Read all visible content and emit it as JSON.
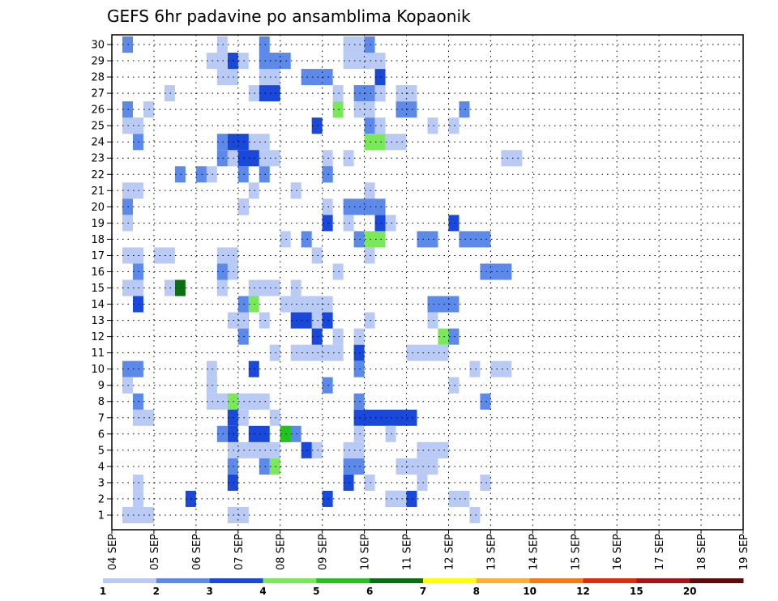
{
  "chart_data": {
    "type": "heatmap",
    "title": "GEFS 6hr padavine po ansamblima Kopaonik",
    "xlabel": "",
    "ylabel": "",
    "x_tick_labels": [
      "04 SEP",
      "05 SEP",
      "06 SEP",
      "07 SEP",
      "08 SEP",
      "09 SEP",
      "10 SEP",
      "11 SEP",
      "12 SEP",
      "13 SEP",
      "14 SEP",
      "15 SEP",
      "16 SEP",
      "17 SEP",
      "18 SEP",
      "19 SEP"
    ],
    "x_range_steps": [
      0,
      60
    ],
    "y_tick_labels": [
      1,
      2,
      3,
      4,
      5,
      6,
      7,
      8,
      9,
      10,
      11,
      12,
      13,
      14,
      15,
      16,
      17,
      18,
      19,
      20,
      21,
      22,
      23,
      24,
      25,
      26,
      27,
      28,
      29,
      30
    ],
    "grid": true,
    "colorbar": {
      "labels": [
        "1",
        "2",
        "3",
        "4",
        "5",
        "6",
        "7",
        "8",
        "10",
        "12",
        "15",
        "20"
      ],
      "colors": [
        "#b9cbf5",
        "#5d8ae8",
        "#1a48d8",
        "#7ae85a",
        "#24c21f",
        "#0b6e12",
        "#ffff00",
        "#fbb034",
        "#fa7814",
        "#e02a0c",
        "#a81416",
        "#5e0a0a"
      ]
    },
    "cells": [
      [
        2,
        1,
        0
      ],
      [
        3,
        9,
        1
      ],
      [
        1,
        10,
        1
      ],
      [
        1,
        12,
        1
      ],
      [
        3,
        14,
        2
      ],
      [
        2,
        16,
        2
      ],
      [
        4,
        17,
        2
      ],
      [
        3,
        22,
        1
      ],
      [
        3,
        23,
        2
      ],
      [
        2,
        29,
        1
      ],
      [
        2,
        30,
        1
      ],
      [
        3,
        33,
        2
      ],
      [
        1,
        1,
        1
      ],
      [
        1,
        2,
        1
      ],
      [
        1,
        9,
        1
      ],
      [
        2,
        10,
        1
      ],
      [
        5,
        11,
        1
      ],
      [
        2,
        22,
        1
      ],
      [
        6,
        23,
        2
      ],
      [
        3,
        30,
        1
      ],
      [
        1,
        1,
        1
      ],
      [
        2,
        10,
        1
      ],
      [
        5,
        11,
        1
      ],
      [
        1,
        12,
        1
      ],
      [
        1,
        22,
        1
      ],
      [
        2,
        23,
        1
      ],
      [
        1,
        24,
        1
      ],
      [
        2,
        1,
        1
      ],
      [
        2,
        4,
        1
      ],
      [
        4,
        11,
        1
      ],
      [
        1,
        12,
        1
      ],
      [
        1,
        23,
        1
      ],
      [
        1,
        6,
        6
      ],
      [
        1,
        9,
        1
      ],
      [
        2,
        11,
        1
      ],
      [
        2,
        13,
        3
      ],
      [
        1,
        14,
        1
      ],
      [
        1,
        20,
        1
      ],
      [
        1,
        21,
        1
      ],
      [
        2,
        22,
        1
      ],
      [
        1,
        23,
        3
      ],
      [
        2,
        24,
        3
      ],
      [
        1,
        25,
        1
      ],
      [
        3,
        26,
        3
      ],
      [
        1,
        1,
        1
      ],
      [
        1,
        2,
        3
      ],
      [
        1,
        20,
        1
      ],
      [
        1,
        24,
        1
      ],
      [
        1,
        12,
        1
      ],
      [
        1,
        13,
        3
      ],
      [
        1,
        24,
        1
      ],
      [
        1,
        25,
        3
      ],
      [
        3,
        29,
        1
      ],
      [
        1,
        31,
        3
      ],
      [
        1,
        32,
        2
      ],
      [
        1,
        33,
        1
      ],
      [
        1,
        35,
        1
      ],
      [
        2,
        36,
        1
      ],
      [
        1,
        1,
        1
      ],
      [
        1,
        2,
        1
      ],
      [
        1,
        3,
        1
      ],
      [
        4,
        11,
        1
      ],
      [
        1,
        17,
        1
      ],
      [
        1,
        20,
        1
      ],
      [
        2,
        24,
        1
      ],
      [
        1,
        26,
        1
      ],
      [
        1,
        30,
        1
      ],
      [
        1,
        1,
        2
      ],
      [
        1,
        5,
        1
      ],
      [
        1,
        11,
        2
      ],
      [
        4,
        18,
        1
      ],
      [
        1,
        23,
        1
      ],
      [
        1,
        24,
        2
      ],
      [
        2,
        26,
        1
      ],
      [
        1,
        32,
        1
      ],
      [
        3,
        35,
        1
      ],
      [
        2,
        37,
        1
      ],
      [
        1,
        1,
        2
      ],
      [
        1,
        2,
        1
      ],
      [
        1,
        2,
        3
      ],
      [
        1,
        2,
        1
      ],
      [
        1,
        11,
        1
      ],
      [
        1,
        31,
        1
      ],
      [
        1,
        32,
        1
      ],
      [
        1,
        1,
        1
      ],
      [
        1,
        3,
        1
      ],
      [
        1,
        11,
        2
      ],
      [
        1,
        13,
        3
      ],
      [
        1,
        19,
        1
      ],
      [
        2,
        24,
        3
      ],
      [
        1,
        34,
        1
      ],
      [
        1,
        35,
        1
      ],
      [
        2,
        1,
        1
      ],
      [
        1,
        8,
        2
      ],
      [
        1,
        11,
        3
      ],
      [
        1,
        11,
        3
      ],
      [
        1,
        12,
        3
      ],
      [
        1,
        12,
        2
      ],
      [
        2,
        14,
        2
      ],
      [
        1,
        15,
        4
      ],
      [
        1,
        17,
        1
      ],
      [
        1,
        18,
        2
      ],
      [
        1,
        19,
        3
      ],
      [
        1,
        20,
        3
      ],
      [
        1,
        20,
        2
      ],
      [
        1,
        21,
        1
      ],
      [
        1,
        22,
        1
      ],
      [
        1,
        1,
        1
      ],
      [
        1,
        3,
        1
      ],
      [
        4,
        17,
        1
      ],
      [
        1,
        17,
        1
      ],
      [
        2,
        18,
        1
      ],
      [
        1,
        19,
        1
      ],
      [
        1,
        21,
        1
      ],
      [
        1,
        26,
        1
      ],
      [
        2,
        27,
        1
      ],
      [
        1,
        29,
        1
      ],
      [
        1,
        34,
        1
      ],
      [
        1,
        2,
        1
      ],
      [
        1,
        10,
        2
      ],
      [
        1,
        11,
        1
      ],
      [
        1,
        11,
        3
      ],
      [
        3,
        13,
        1
      ],
      [
        1,
        14,
        1
      ],
      [
        1,
        15,
        2
      ],
      [
        1,
        16,
        5
      ],
      [
        1,
        19,
        1
      ],
      [
        1,
        24,
        1
      ],
      [
        1,
        25,
        1
      ],
      [
        1,
        27,
        1
      ],
      [
        1,
        28,
        1
      ],
      [
        1,
        29,
        1
      ],
      [
        1,
        30,
        1
      ],
      [
        1,
        32,
        1
      ],
      [
        1,
        1,
        1
      ],
      [
        1,
        2,
        1
      ],
      [
        1,
        10,
        2
      ],
      [
        1,
        10,
        1
      ],
      [
        1,
        11,
        2
      ],
      [
        1,
        12,
        1
      ],
      [
        1,
        13,
        1
      ],
      [
        2,
        14,
        1
      ],
      [
        1,
        18,
        3
      ],
      [
        1,
        19,
        3
      ],
      [
        1,
        20,
        3
      ],
      [
        1,
        21,
        3
      ],
      [
        1,
        22,
        2
      ],
      [
        1,
        23,
        1
      ],
      [
        1,
        24,
        1
      ],
      [
        2,
        26,
        1
      ],
      [
        1,
        1,
        1
      ],
      [
        1,
        2,
        1
      ],
      [
        1,
        5,
        1
      ],
      [
        1,
        6,
        2
      ],
      [
        2,
        9,
        1
      ],
      [
        1,
        10,
        1
      ],
      [
        2,
        11,
        1
      ],
      [
        1,
        12,
        1
      ],
      [
        1,
        13,
        1
      ],
      [
        1,
        14,
        1
      ],
      [
        1,
        15,
        1
      ],
      [
        1,
        16,
        1
      ],
      [
        1,
        2,
        1
      ],
      [
        1,
        7,
        3
      ],
      [
        1,
        9,
        1
      ],
      [
        1,
        11,
        1
      ],
      [
        2,
        12,
        2
      ],
      [
        1,
        14,
        1
      ],
      [
        1,
        15,
        1
      ],
      [
        1,
        16,
        1
      ],
      [
        1,
        17,
        1
      ],
      [
        1,
        20,
        1
      ],
      [
        2,
        22,
        1
      ],
      [
        1,
        23,
        1
      ],
      [
        1,
        25,
        3
      ],
      [
        1,
        1,
        1
      ],
      [
        1,
        2,
        1
      ],
      [
        1,
        9,
        1
      ],
      [
        2,
        10,
        1
      ],
      [
        2,
        11,
        3
      ],
      [
        1,
        12,
        1
      ],
      [
        1,
        13,
        1
      ],
      [
        1,
        14,
        1
      ],
      [
        1,
        20,
        1
      ],
      [
        2,
        22,
        1
      ],
      [
        1,
        23,
        1
      ],
      [
        1,
        24,
        1
      ],
      [
        1,
        25,
        1
      ],
      [
        2,
        27,
        1
      ],
      [
        2,
        28,
        1
      ],
      [
        1,
        29,
        1
      ],
      [
        1,
        30,
        1
      ],
      [
        1,
        32,
        1
      ],
      [
        1,
        33,
        1
      ]
    ]
  }
}
